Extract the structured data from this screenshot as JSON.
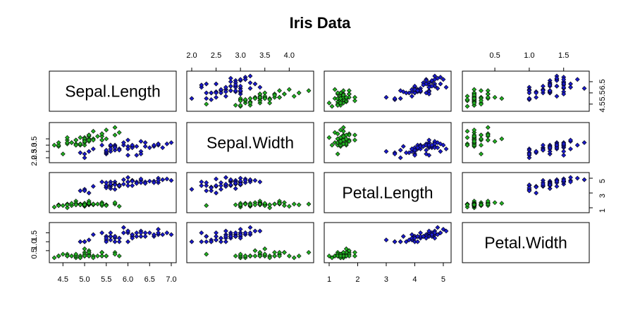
{
  "chart_data": {
    "type": "scatter",
    "title": "Iris Data",
    "variables": [
      "Sepal.Length",
      "Sepal.Width",
      "Petal.Length",
      "Petal.Width"
    ],
    "ranges": {
      "Sepal.Length": [
        4.3,
        7.0
      ],
      "Sepal.Width": [
        2.0,
        4.4
      ],
      "Petal.Length": [
        1.0,
        5.1
      ],
      "Petal.Width": [
        0.1,
        1.8
      ]
    },
    "ticks": {
      "Sepal.Length": [
        4.5,
        5.0,
        5.5,
        6.0,
        6.5,
        7.0
      ],
      "Sepal.Width": [
        2.0,
        2.5,
        3.0,
        3.5,
        4.0
      ],
      "Petal.Length": [
        1,
        2,
        3,
        4,
        5
      ],
      "Petal.Width": [
        0.5,
        1.0,
        1.5
      ]
    },
    "tick_labels": {
      "Sepal.Length": [
        "4.5",
        "5.0",
        "5.5",
        "6.0",
        "6.5",
        "7.0"
      ],
      "Sepal.Width": [
        "2.0",
        "2.5",
        "3.0",
        "3.5",
        "4.0"
      ],
      "Petal.Length": [
        "1",
        "2",
        "3",
        "4",
        "5"
      ],
      "Petal.Width": [
        "0.5",
        "1.0",
        "1.5"
      ]
    },
    "right_axis_ticks": {
      "Sepal.Length": [
        4.5,
        5.5,
        6.5
      ],
      "Petal.Length": [
        1,
        3,
        5
      ]
    },
    "right_axis_labels": {
      "Sepal.Length": [
        "4.5",
        "5.5",
        "6.5"
      ],
      "Petal.Length": [
        "1",
        "3",
        "5"
      ]
    },
    "left_axis_ticks": {
      "Sepal.Width": [
        2.0,
        2.5,
        3.0,
        3.5
      ],
      "Petal.Width": [
        0.5,
        1.0,
        1.5
      ]
    },
    "left_axis_labels": {
      "Sepal.Width": [
        "2.0",
        "2.5",
        "3.0",
        "3.5"
      ],
      "Petal.Width": [
        "0.5",
        "1.0",
        "1.5"
      ]
    },
    "colors": {
      "setosa": "#22b022",
      "versicolor": "#1a1acd"
    },
    "series": [
      {
        "color": "#22b022",
        "points": [
          [
            5.1,
            3.5,
            1.4,
            0.2
          ],
          [
            4.9,
            3.0,
            1.4,
            0.2
          ],
          [
            4.7,
            3.2,
            1.3,
            0.2
          ],
          [
            4.6,
            3.1,
            1.5,
            0.2
          ],
          [
            5.0,
            3.6,
            1.4,
            0.2
          ],
          [
            5.4,
            3.9,
            1.7,
            0.4
          ],
          [
            4.6,
            3.4,
            1.4,
            0.3
          ],
          [
            5.0,
            3.4,
            1.5,
            0.2
          ],
          [
            4.4,
            2.9,
            1.4,
            0.2
          ],
          [
            4.9,
            3.1,
            1.5,
            0.1
          ],
          [
            5.4,
            3.7,
            1.5,
            0.2
          ],
          [
            4.8,
            3.4,
            1.6,
            0.2
          ],
          [
            4.8,
            3.0,
            1.4,
            0.1
          ],
          [
            4.3,
            3.0,
            1.1,
            0.1
          ],
          [
            5.8,
            4.0,
            1.2,
            0.2
          ],
          [
            5.7,
            4.4,
            1.5,
            0.4
          ],
          [
            5.4,
            3.9,
            1.3,
            0.4
          ],
          [
            5.1,
            3.5,
            1.4,
            0.3
          ],
          [
            5.7,
            3.8,
            1.7,
            0.3
          ],
          [
            5.1,
            3.8,
            1.5,
            0.3
          ],
          [
            5.4,
            3.4,
            1.7,
            0.2
          ],
          [
            5.1,
            3.7,
            1.5,
            0.4
          ],
          [
            4.6,
            3.6,
            1.0,
            0.2
          ],
          [
            5.1,
            3.3,
            1.7,
            0.5
          ],
          [
            4.8,
            3.4,
            1.9,
            0.2
          ],
          [
            5.0,
            3.0,
            1.6,
            0.2
          ],
          [
            5.0,
            3.4,
            1.6,
            0.4
          ],
          [
            5.2,
            3.5,
            1.5,
            0.2
          ],
          [
            5.2,
            3.4,
            1.4,
            0.2
          ],
          [
            4.7,
            3.2,
            1.6,
            0.2
          ],
          [
            4.8,
            3.1,
            1.6,
            0.2
          ],
          [
            5.4,
            3.4,
            1.5,
            0.4
          ],
          [
            5.2,
            4.1,
            1.5,
            0.1
          ],
          [
            5.5,
            4.2,
            1.4,
            0.2
          ],
          [
            4.9,
            3.1,
            1.5,
            0.2
          ],
          [
            5.0,
            3.2,
            1.2,
            0.2
          ],
          [
            5.5,
            3.5,
            1.3,
            0.2
          ],
          [
            4.9,
            3.6,
            1.4,
            0.1
          ],
          [
            4.4,
            3.0,
            1.3,
            0.2
          ],
          [
            5.1,
            3.4,
            1.5,
            0.2
          ],
          [
            5.0,
            3.5,
            1.3,
            0.3
          ],
          [
            4.5,
            2.3,
            1.3,
            0.3
          ],
          [
            4.4,
            3.2,
            1.3,
            0.2
          ],
          [
            5.0,
            3.5,
            1.6,
            0.6
          ],
          [
            5.1,
            3.8,
            1.9,
            0.4
          ],
          [
            4.8,
            3.0,
            1.4,
            0.3
          ],
          [
            5.1,
            3.8,
            1.6,
            0.2
          ],
          [
            4.6,
            3.2,
            1.4,
            0.2
          ],
          [
            5.3,
            3.7,
            1.5,
            0.2
          ],
          [
            5.0,
            3.3,
            1.4,
            0.2
          ]
        ]
      },
      {
        "color": "#1a1acd",
        "points": [
          [
            7.0,
            3.2,
            4.7,
            1.4
          ],
          [
            6.4,
            3.2,
            4.5,
            1.5
          ],
          [
            6.9,
            3.1,
            4.9,
            1.5
          ],
          [
            5.5,
            2.3,
            4.0,
            1.3
          ],
          [
            6.5,
            2.8,
            4.6,
            1.5
          ],
          [
            5.7,
            2.8,
            4.5,
            1.3
          ],
          [
            6.3,
            3.3,
            4.7,
            1.6
          ],
          [
            4.9,
            2.4,
            3.3,
            1.0
          ],
          [
            6.6,
            2.9,
            4.6,
            1.3
          ],
          [
            5.2,
            2.7,
            3.9,
            1.4
          ],
          [
            5.0,
            2.0,
            3.5,
            1.0
          ],
          [
            5.9,
            3.0,
            4.2,
            1.5
          ],
          [
            6.0,
            2.2,
            4.0,
            1.0
          ],
          [
            6.1,
            2.9,
            4.7,
            1.4
          ],
          [
            5.6,
            2.9,
            3.6,
            1.3
          ],
          [
            6.7,
            3.1,
            4.4,
            1.4
          ],
          [
            5.6,
            3.0,
            4.5,
            1.5
          ],
          [
            5.8,
            2.7,
            4.1,
            1.0
          ],
          [
            6.2,
            2.2,
            4.5,
            1.5
          ],
          [
            5.6,
            2.5,
            3.9,
            1.1
          ],
          [
            5.9,
            3.2,
            4.8,
            1.8
          ],
          [
            6.1,
            2.8,
            4.0,
            1.3
          ],
          [
            6.3,
            2.5,
            4.9,
            1.5
          ],
          [
            6.1,
            2.8,
            4.7,
            1.2
          ],
          [
            6.4,
            2.9,
            4.3,
            1.3
          ],
          [
            6.6,
            3.0,
            4.4,
            1.4
          ],
          [
            6.8,
            2.8,
            4.8,
            1.4
          ],
          [
            6.7,
            3.0,
            5.0,
            1.7
          ],
          [
            6.0,
            2.9,
            4.5,
            1.5
          ],
          [
            5.7,
            2.6,
            3.5,
            1.0
          ],
          [
            5.5,
            2.4,
            3.8,
            1.1
          ],
          [
            5.5,
            2.4,
            3.7,
            1.0
          ],
          [
            5.8,
            2.7,
            3.9,
            1.2
          ],
          [
            6.0,
            2.7,
            5.1,
            1.6
          ],
          [
            5.4,
            3.0,
            4.5,
            1.5
          ],
          [
            6.0,
            3.4,
            4.5,
            1.6
          ],
          [
            6.7,
            3.1,
            4.7,
            1.5
          ],
          [
            6.3,
            2.3,
            4.4,
            1.3
          ],
          [
            5.6,
            3.0,
            4.1,
            1.3
          ],
          [
            5.5,
            2.5,
            4.0,
            1.3
          ],
          [
            5.5,
            2.6,
            4.4,
            1.2
          ],
          [
            6.1,
            3.0,
            4.6,
            1.4
          ],
          [
            5.8,
            2.6,
            4.0,
            1.2
          ],
          [
            5.0,
            2.3,
            3.3,
            1.0
          ],
          [
            5.6,
            2.7,
            4.2,
            1.3
          ],
          [
            5.7,
            3.0,
            4.2,
            1.2
          ],
          [
            5.7,
            2.9,
            4.2,
            1.3
          ],
          [
            6.2,
            2.9,
            4.3,
            1.3
          ],
          [
            5.1,
            2.5,
            3.0,
            1.1
          ],
          [
            5.7,
            2.8,
            4.1,
            1.3
          ]
        ]
      }
    ]
  }
}
